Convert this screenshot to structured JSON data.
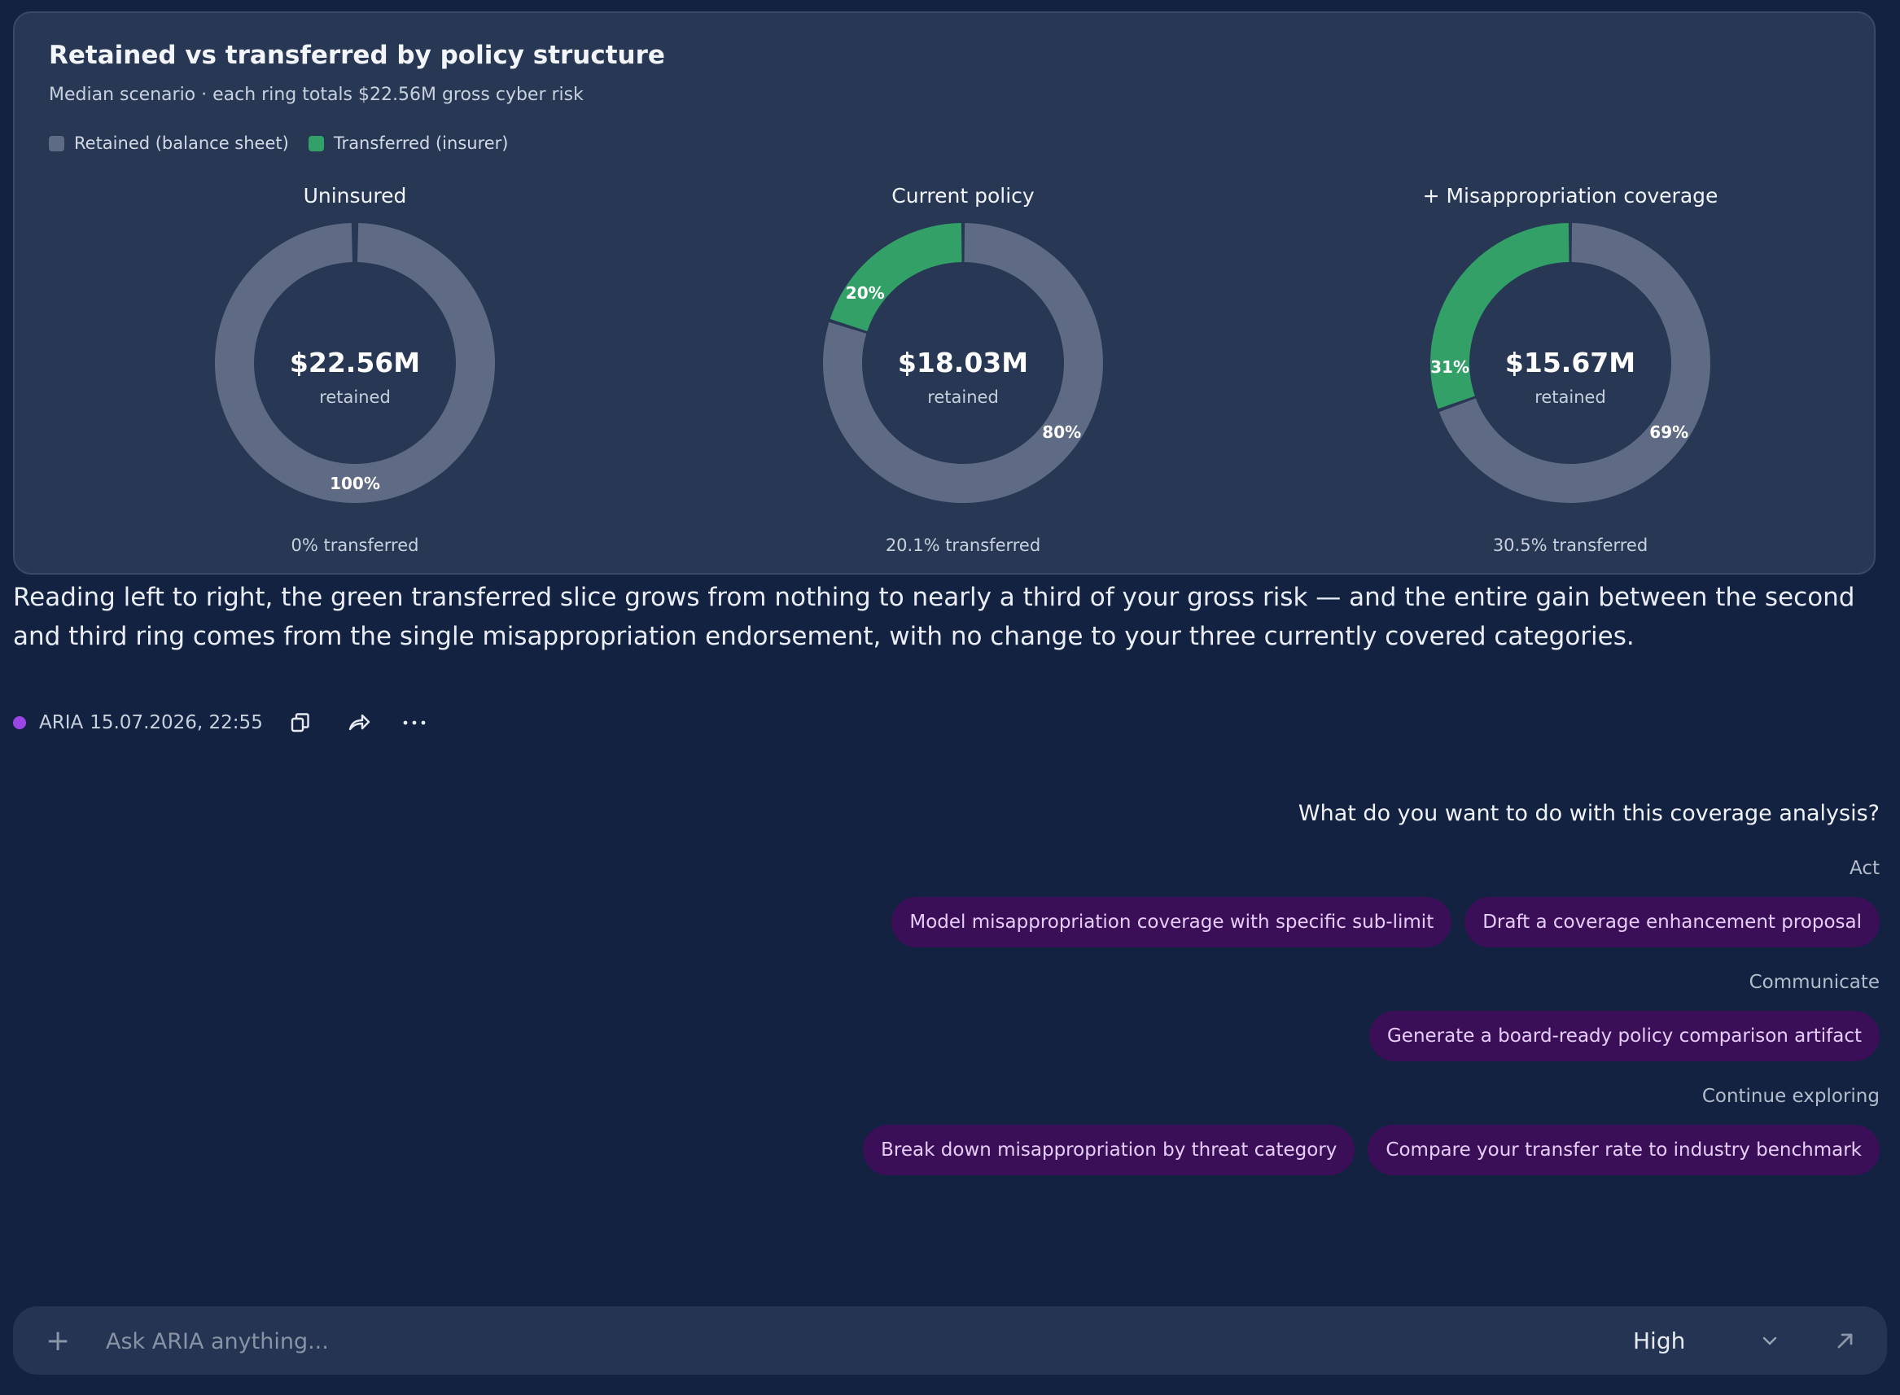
{
  "card": {
    "title": "Retained vs transferred by policy structure",
    "subtitle": "Median scenario · each ring totals $22.56M gross cyber risk",
    "legend": [
      {
        "label": "Retained (balance sheet)",
        "color": "#5f6b84"
      },
      {
        "label": "Transferred (insurer)",
        "color": "#33a068"
      }
    ]
  },
  "chart_data": [
    {
      "type": "pie",
      "title": "Uninsured",
      "center_value": "$22.56M",
      "center_label": "retained",
      "footer": "0% transferred",
      "slices": [
        {
          "name": "Retained (balance sheet)",
          "value": 100,
          "label": "100%"
        },
        {
          "name": "Transferred (insurer)",
          "value": 0,
          "label": ""
        }
      ]
    },
    {
      "type": "pie",
      "title": "Current policy",
      "center_value": "$18.03M",
      "center_label": "retained",
      "footer": "20.1% transferred",
      "slices": [
        {
          "name": "Retained (balance sheet)",
          "value": 79.9,
          "label": "80%"
        },
        {
          "name": "Transferred (insurer)",
          "value": 20.1,
          "label": "20%"
        }
      ]
    },
    {
      "type": "pie",
      "title": "+ Misappropriation coverage",
      "center_value": "$15.67M",
      "center_label": "retained",
      "footer": "30.5% transferred",
      "slices": [
        {
          "name": "Retained (balance sheet)",
          "value": 69.5,
          "label": "69%"
        },
        {
          "name": "Transferred (insurer)",
          "value": 30.5,
          "label": "31%"
        }
      ]
    }
  ],
  "paragraph": "Reading left to right, the green transferred slice grows from nothing to nearly a third of your gross risk — and the entire gain between the second and third ring comes from the single misappropriation endorsement, with no change to your three currently covered categories.",
  "meta": {
    "author": "ARIA",
    "timestamp": "15.07.2026, 22:55",
    "icons": [
      "copy-icon",
      "share-icon",
      "more-icon"
    ]
  },
  "followup": {
    "question": "What do you want to do with this coverage analysis?",
    "groups": [
      {
        "label": "Act",
        "chips": [
          "Model misappropriation coverage with specific sub-limit",
          "Draft a coverage enhancement proposal"
        ]
      },
      {
        "label": "Communicate",
        "chips": [
          "Generate a board-ready policy comparison artifact"
        ]
      },
      {
        "label": "Continue exploring",
        "chips": [
          "Break down misappropriation by threat category",
          "Compare your transfer rate to industry benchmark"
        ]
      }
    ]
  },
  "composer": {
    "placeholder": "Ask ARIA anything...",
    "effort": "High"
  },
  "colors": {
    "background": "#132240",
    "card": "#273754",
    "retained": "#5f6b84",
    "transferred": "#33a068",
    "chip": "#3a0f57",
    "status_dot": "#9b45e4"
  }
}
